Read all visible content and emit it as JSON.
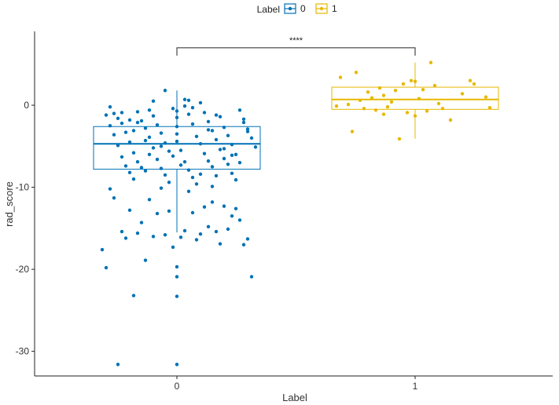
{
  "chart_data": {
    "type": "boxplot",
    "title": "",
    "xlabel": "Label",
    "ylabel": "rad_score",
    "categories": [
      "0",
      "1"
    ],
    "ylim": [
      -33,
      9
    ],
    "yticks": [
      0,
      -10,
      -20,
      -30
    ],
    "ytick_labels": [
      "0",
      "-10",
      "-20",
      "-30"
    ],
    "grid": false,
    "legend": {
      "title": "Label",
      "position": "top",
      "entries": [
        "0",
        "1"
      ]
    },
    "colors": {
      "0": "#0072b5",
      "1": "#e7b800"
    },
    "significance": {
      "label": "****",
      "y": 7.0,
      "groups": [
        "0",
        "1"
      ]
    },
    "boxes": [
      {
        "group": "0",
        "q1": -7.8,
        "median": -4.7,
        "q3": -2.6,
        "whisker_low": -15.5,
        "whisker_high": 1.8
      },
      {
        "group": "1",
        "q1": -0.5,
        "median": 0.7,
        "q3": 2.2,
        "whisker_low": -4.1,
        "whisker_high": 5.2
      }
    ],
    "series": [
      {
        "name": "0",
        "points": [
          [
            -0.19,
            -17.6
          ],
          [
            -0.18,
            -19.8
          ],
          [
            -0.17,
            -10.2
          ],
          [
            -0.16,
            -11.3
          ],
          [
            -0.15,
            -31.6
          ],
          [
            -0.14,
            -15.4
          ],
          [
            -0.13,
            -16.2
          ],
          [
            -0.12,
            -12.8
          ],
          [
            -0.11,
            -23.2
          ],
          [
            -0.1,
            -15.6
          ],
          [
            -0.09,
            -14.3
          ],
          [
            -0.08,
            -18.9
          ],
          [
            -0.07,
            -11.5
          ],
          [
            -0.06,
            -16.0
          ],
          [
            -0.05,
            -13.2
          ],
          [
            -0.04,
            -10.1
          ],
          [
            -0.03,
            -15.8
          ],
          [
            -0.02,
            -12.9
          ],
          [
            -0.01,
            -17.3
          ],
          [
            0.0,
            -23.3
          ],
          [
            0.0,
            -31.6
          ],
          [
            0.0,
            -20.9
          ],
          [
            0.0,
            -19.7
          ],
          [
            0.01,
            -16.1
          ],
          [
            0.02,
            -15.3
          ],
          [
            0.03,
            -10.5
          ],
          [
            0.04,
            -13.1
          ],
          [
            0.05,
            -16.4
          ],
          [
            0.06,
            -15.7
          ],
          [
            0.07,
            -12.4
          ],
          [
            0.08,
            -14.8
          ],
          [
            0.09,
            -11.8
          ],
          [
            0.1,
            -15.4
          ],
          [
            0.11,
            -16.9
          ],
          [
            0.12,
            -12.3
          ],
          [
            0.13,
            -15.1
          ],
          [
            0.14,
            -13.5
          ],
          [
            0.15,
            -12.6
          ],
          [
            0.16,
            -14.0
          ],
          [
            0.17,
            -17.0
          ],
          [
            0.18,
            -16.3
          ],
          [
            0.19,
            -20.9
          ],
          [
            -0.18,
            -1.2
          ],
          [
            -0.17,
            -2.5
          ],
          [
            -0.16,
            -3.6
          ],
          [
            -0.15,
            -4.9
          ],
          [
            -0.14,
            -6.3
          ],
          [
            -0.13,
            -7.4
          ],
          [
            -0.12,
            -8.2
          ],
          [
            -0.11,
            -9.0
          ],
          [
            -0.1,
            -0.8
          ],
          [
            -0.09,
            -1.9
          ],
          [
            -0.08,
            -2.8
          ],
          [
            -0.07,
            -3.9
          ],
          [
            -0.06,
            -5.2
          ],
          [
            -0.05,
            -6.6
          ],
          [
            -0.04,
            -7.7
          ],
          [
            -0.03,
            -8.5
          ],
          [
            -0.02,
            -9.4
          ],
          [
            -0.01,
            -0.4
          ],
          [
            0.0,
            -1.5
          ],
          [
            0.0,
            -2.6
          ],
          [
            0.0,
            -3.5
          ],
          [
            0.0,
            -4.4
          ],
          [
            0.01,
            -5.5
          ],
          [
            0.02,
            -6.9
          ],
          [
            0.03,
            -7.9
          ],
          [
            0.04,
            -8.8
          ],
          [
            0.05,
            -9.6
          ],
          [
            0.06,
            0.3
          ],
          [
            0.07,
            -0.9
          ],
          [
            0.08,
            -2.0
          ],
          [
            0.09,
            -3.1
          ],
          [
            0.1,
            -4.2
          ],
          [
            0.11,
            -5.4
          ],
          [
            0.12,
            -6.5
          ],
          [
            0.13,
            -7.2
          ],
          [
            0.14,
            -8.3
          ],
          [
            0.15,
            -9.1
          ],
          [
            0.16,
            -0.6
          ],
          [
            0.17,
            -1.7
          ],
          [
            0.18,
            -2.9
          ],
          [
            0.19,
            -4.0
          ],
          [
            0.2,
            -5.1
          ],
          [
            -0.17,
            -0.2
          ],
          [
            -0.15,
            -1.6
          ],
          [
            -0.14,
            -2.2
          ],
          [
            -0.13,
            -3.3
          ],
          [
            -0.12,
            -4.5
          ],
          [
            -0.11,
            -5.8
          ],
          [
            -0.1,
            -6.9
          ],
          [
            -0.09,
            -7.6
          ],
          [
            -0.08,
            -8.0
          ],
          [
            -0.07,
            -0.6
          ],
          [
            -0.06,
            -1.3
          ],
          [
            -0.05,
            -2.4
          ],
          [
            -0.04,
            -3.4
          ],
          [
            -0.03,
            -4.6
          ],
          [
            -0.02,
            -5.6
          ],
          [
            -0.01,
            -6.2
          ],
          [
            0.01,
            -7.3
          ],
          [
            0.02,
            -0.1
          ],
          [
            0.03,
            -1.1
          ],
          [
            0.04,
            -2.3
          ],
          [
            0.05,
            -3.8
          ],
          [
            0.06,
            -4.7
          ],
          [
            0.07,
            -5.9
          ],
          [
            0.08,
            -6.8
          ],
          [
            0.09,
            -7.5
          ],
          [
            0.1,
            -8.6
          ],
          [
            0.11,
            -1.4
          ],
          [
            0.12,
            -2.7
          ],
          [
            0.13,
            -3.7
          ],
          [
            0.14,
            -4.8
          ],
          [
            0.15,
            -6.0
          ],
          [
            0.16,
            -7.0
          ],
          [
            0.17,
            -2.1
          ],
          [
            0.18,
            -3.2
          ],
          [
            -0.16,
            -1.0
          ],
          [
            -0.12,
            -1.8
          ],
          [
            -0.08,
            -4.3
          ],
          [
            -0.04,
            -5.0
          ],
          [
            0.0,
            -0.7
          ],
          [
            0.04,
            -0.3
          ],
          [
            0.08,
            -3.0
          ],
          [
            0.12,
            -5.3
          ],
          [
            -0.06,
            0.5
          ],
          [
            0.02,
            0.7
          ],
          [
            -0.1,
            -2.1
          ],
          [
            0.1,
            -1.2
          ],
          [
            -0.14,
            -0.9
          ],
          [
            0.14,
            -6.1
          ],
          [
            -0.03,
            1.8
          ],
          [
            0.03,
            0.6
          ],
          [
            -0.07,
            -6.0
          ],
          [
            0.06,
            -8.4
          ],
          [
            -0.11,
            -3.1
          ],
          [
            0.09,
            -9.9
          ]
        ]
      },
      {
        "name": "1",
        "points": [
          [
            -0.19,
            3.4
          ],
          [
            -0.17,
            0.1
          ],
          [
            -0.16,
            -3.2
          ],
          [
            -0.15,
            4.0
          ],
          [
            -0.14,
            0.6
          ],
          [
            -0.13,
            -0.4
          ],
          [
            -0.12,
            1.6
          ],
          [
            -0.11,
            0.9
          ],
          [
            -0.1,
            -0.6
          ],
          [
            -0.09,
            2.1
          ],
          [
            -0.08,
            1.2
          ],
          [
            -0.07,
            -0.2
          ],
          [
            -0.06,
            0.4
          ],
          [
            -0.05,
            1.8
          ],
          [
            -0.04,
            -4.1
          ],
          [
            -0.03,
            2.6
          ],
          [
            -0.02,
            -0.9
          ],
          [
            -0.01,
            3.0
          ],
          [
            0.0,
            -1.3
          ],
          [
            0.01,
            0.8
          ],
          [
            0.02,
            1.9
          ],
          [
            0.03,
            -0.7
          ],
          [
            0.04,
            5.2
          ],
          [
            0.05,
            2.4
          ],
          [
            0.06,
            0.2
          ],
          [
            0.07,
            -0.4
          ],
          [
            0.09,
            -1.8
          ],
          [
            0.12,
            1.4
          ],
          [
            0.14,
            3.0
          ],
          [
            0.15,
            2.6
          ],
          [
            0.18,
            1.0
          ],
          [
            0.19,
            -0.3
          ],
          [
            -0.2,
            -0.1
          ],
          [
            0.0,
            2.9
          ],
          [
            -0.08,
            -1.1
          ]
        ]
      }
    ]
  }
}
